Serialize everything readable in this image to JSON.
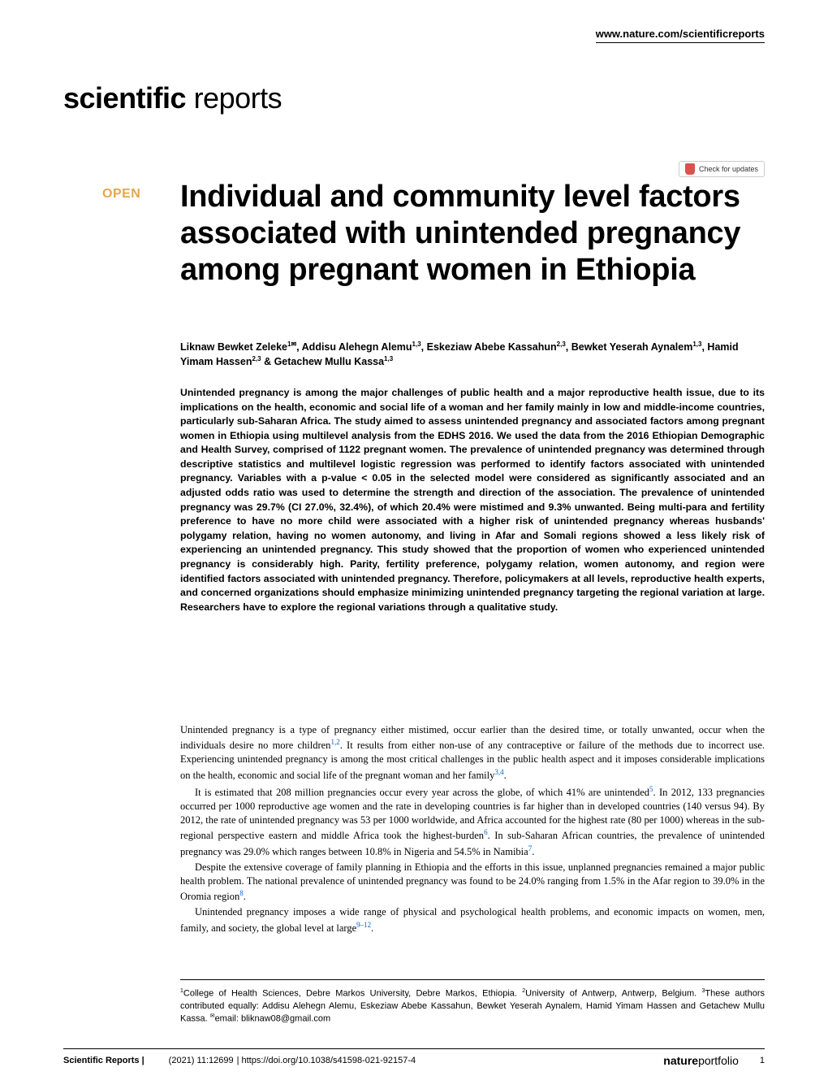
{
  "header": {
    "top_link": "www.nature.com/scientificreports",
    "brand_bold": "scientific",
    "brand_light": " reports",
    "check_updates": "Check for updates",
    "open_badge": "OPEN"
  },
  "title": "Individual and community level factors associated with unintended pregnancy among pregnant women in Ethiopia",
  "authors_html": "Liknaw Bewket Zeleke<sup>1✉</sup>, Addisu Alehegn Alemu<sup>1,3</sup>, Eskeziaw Abebe Kassahun<sup>2,3</sup>, Bewket Yeserah Aynalem<sup>1,3</sup>, Hamid Yimam Hassen<sup>2,3</sup> & Getachew Mullu Kassa<sup>1,3</sup>",
  "abstract": "Unintended pregnancy is among the major challenges of public health and a major reproductive health issue, due to its implications on the health, economic and social life of a woman and her family mainly in low and middle-income countries, particularly sub-Saharan Africa. The study aimed to assess unintended pregnancy and associated factors among pregnant women in Ethiopia using multilevel analysis from the EDHS 2016. We used the data from the 2016 Ethiopian Demographic and Health Survey, comprised of 1122 pregnant women. The prevalence of unintended pregnancy was determined through descriptive statistics and multilevel logistic regression was performed to identify factors associated with unintended pregnancy. Variables with a p-value < 0.05 in the selected model were considered as significantly associated and an adjusted odds ratio was used to determine the strength and direction of the association. The prevalence of unintended pregnancy was 29.7% (CI 27.0%, 32.4%), of which 20.4% were mistimed and 9.3% unwanted. Being multi-para and fertility preference to have no more child were associated with a higher risk of unintended pregnancy whereas husbands' polygamy relation, having no women autonomy, and living in Afar and Somali regions showed a less likely risk of experiencing an unintended pregnancy. This study showed that the proportion of women who experienced unintended pregnancy is considerably high. Parity, fertility preference, polygamy relation, women autonomy, and region were identified factors associated with unintended pregnancy. Therefore, policymakers at all levels, reproductive health experts, and concerned organizations should emphasize minimizing unintended pregnancy targeting the regional variation at large. Researchers have to explore the regional variations through a qualitative study.",
  "body": {
    "p1": "Unintended pregnancy is a type of pregnancy either mistimed, occur earlier than the desired time, or totally unwanted, occur when the individuals desire no more children",
    "p1_refs": "1,2",
    "p1b": ". It results from either non-use of any contraceptive or failure of the methods due to incorrect use. Experiencing unintended pregnancy is among the most critical challenges in the public health aspect and it imposes considerable implications on the health, economic and social life of the pregnant woman and her family",
    "p1b_refs": "3,4",
    "p1c": ".",
    "p2": "It is estimated that 208 million pregnancies occur every year across the globe, of which 41% are unintended",
    "p2_refs": "5",
    "p2b": ". In 2012, 133 pregnancies occurred per 1000 reproductive age women and the rate in developing countries is far higher than in developed countries (140 versus 94). By 2012, the rate of unintended pregnancy was 53 per 1000 worldwide, and Africa accounted for the highest rate (80 per 1000) whereas in the sub-regional perspective eastern and middle Africa took the highest-burden",
    "p2b_refs": "6",
    "p2c": ". In sub-Saharan African countries, the prevalence of unintended pregnancy was 29.0% which ranges between 10.8% in Nigeria and 54.5% in Namibia",
    "p2c_refs": "7",
    "p2d": ".",
    "p3": "Despite the extensive coverage of family planning in Ethiopia and the efforts in this issue, unplanned pregnancies remained a major public health problem. The national prevalence of unintended pregnancy was found to be 24.0% ranging from 1.5% in the Afar region to 39.0% in the Oromia region",
    "p3_refs": "8",
    "p3b": ".",
    "p4": "Unintended pregnancy imposes a wide range of physical and psychological health problems, and economic impacts on women, men, family, and society, the global level at large",
    "p4_refs": "9–12",
    "p4b": "."
  },
  "affiliations_html": "<sup>1</sup>College of Health Sciences, Debre Markos University, Debre Markos, Ethiopia. <sup>2</sup>University of Antwerp, Antwerp, Belgium. <sup>3</sup>These authors contributed equally: Addisu Alehegn Alemu, Eskeziaw Abebe Kassahun, Bewket Yeserah Aynalem, Hamid Yimam Hassen and Getachew Mullu Kassa. <sup>✉</sup>email: bliknaw08@gmail.com",
  "footer": {
    "journal": "Scientific Reports",
    "citation": "(2021) 11:12699",
    "doi": "| https://doi.org/10.1038/s41598-021-92157-4",
    "portfolio_bold": "nature",
    "portfolio_light": "portfolio",
    "page": "1"
  }
}
